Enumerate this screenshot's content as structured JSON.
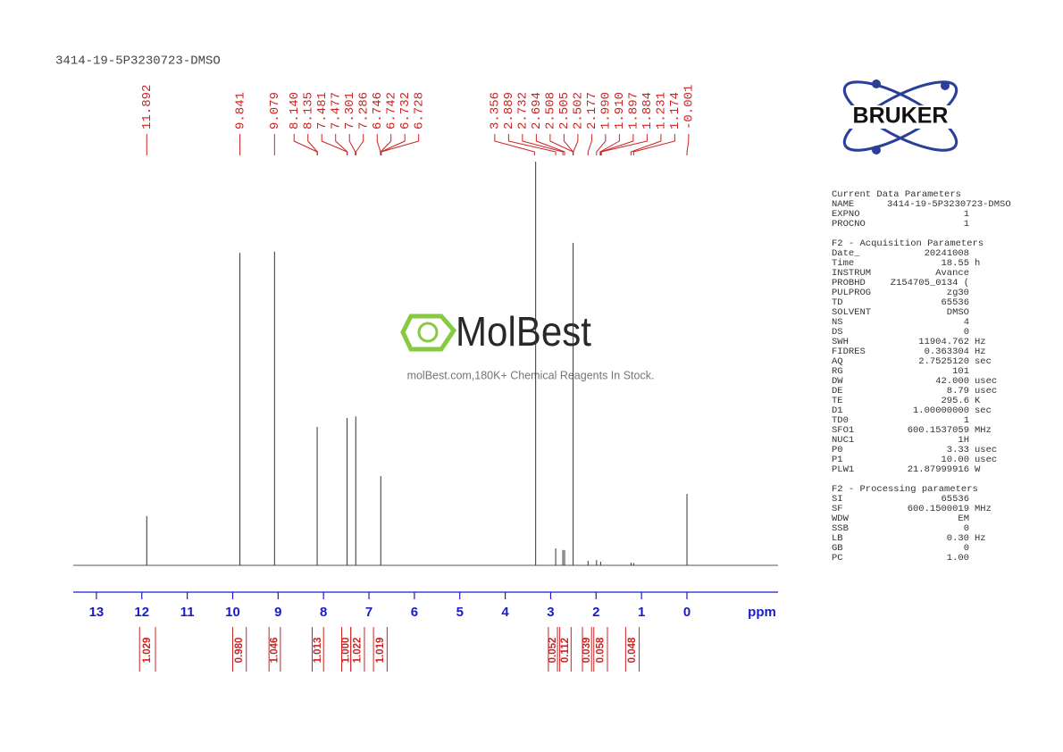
{
  "chart_data": {
    "type": "nmr",
    "title": "3414-19-5P3230723-DMSO",
    "x_label": "ppm",
    "xlim": [
      13.5,
      -2.0
    ],
    "xticks": [
      13,
      12,
      11,
      10,
      9,
      8,
      7,
      6,
      5,
      4,
      3,
      2,
      1,
      0
    ],
    "ylim": [
      0,
      100
    ],
    "axis_color": "#1a1acc",
    "label_color": "#cc2222",
    "spectrum_color": "#333333",
    "peaks": {
      "values": [
        11.892,
        9.841,
        9.079,
        8.14,
        8.135,
        7.481,
        7.477,
        7.301,
        7.286,
        6.746,
        6.742,
        6.732,
        6.728,
        3.356,
        2.889,
        2.732,
        2.694,
        2.508,
        2.505,
        2.502,
        2.177,
        1.99,
        1.91,
        1.897,
        1.884,
        1.231,
        1.174,
        -0.001
      ],
      "value_labels": [
        "11.892",
        "9.841",
        "9.079",
        "8.140",
        "8.135",
        "7.481",
        "7.477",
        "7.301",
        "7.286",
        "6.746",
        "6.742",
        "6.732",
        "6.728",
        "3.356",
        "2.889",
        "2.732",
        "2.694",
        "2.508",
        "2.505",
        "2.502",
        "2.177",
        "1.990",
        "1.910",
        "1.897",
        "1.884",
        "1.231",
        "1.174",
        "-0.001"
      ]
    },
    "signals": {
      "x": [
        11.892,
        9.841,
        9.079,
        8.14,
        7.481,
        7.29,
        6.74,
        3.33,
        2.889,
        2.732,
        2.694,
        2.505,
        2.177,
        1.99,
        1.9,
        1.231,
        1.174,
        -0.001
      ],
      "values": [
        12.2,
        77.4,
        77.7,
        34.3,
        36.5,
        36.9,
        22.1,
        100,
        4.2,
        3.8,
        3.8,
        79.9,
        1.1,
        1.3,
        0.9,
        0.7,
        0.6,
        17.7
      ]
    },
    "integrals": {
      "values": [
        1.029,
        0.98,
        1.046,
        1.013,
        1.0,
        1.022,
        1.019,
        0.052,
        0.112,
        0.039,
        0.058,
        0.048
      ],
      "value_labels": [
        "1.029",
        "0.980",
        "1.046",
        "1.013",
        "1.000",
        "1.022",
        "1.019",
        "0.052",
        "0.112",
        "0.039",
        "0.058",
        "0.048"
      ],
      "ranges": [
        [
          12.05,
          11.7
        ],
        [
          10.0,
          9.7
        ],
        [
          9.2,
          8.95
        ],
        [
          8.25,
          8.0
        ],
        [
          7.6,
          7.4
        ],
        [
          7.4,
          7.1
        ],
        [
          6.9,
          6.6
        ],
        [
          3.05,
          2.85
        ],
        [
          2.8,
          2.55
        ],
        [
          2.3,
          2.1
        ],
        [
          2.05,
          1.75
        ],
        [
          1.35,
          1.05
        ]
      ]
    }
  },
  "branding": {
    "logo": "BRUKER",
    "watermark": "MolBest",
    "watermark_caption": "molBest.com,180K+ Chemical Reagents In Stock."
  },
  "parameters": [
    {
      "title": "Current Data Parameters",
      "rows": [
        [
          "NAME",
          "3414-19-5P3230723-DMSO"
        ],
        [
          "EXPNO",
          "1"
        ],
        [
          "PROCNO",
          "1"
        ]
      ]
    },
    {
      "title": "F2 - Acquisition Parameters",
      "rows": [
        [
          "Date_",
          "20241008"
        ],
        [
          "Time",
          "18.55",
          "h"
        ],
        [
          "INSTRUM",
          "Avance"
        ],
        [
          "PROBHD",
          "Z154705_0134 ("
        ],
        [
          "PULPROG",
          "zg30"
        ],
        [
          "TD",
          "65536"
        ],
        [
          "SOLVENT",
          "DMSO"
        ],
        [
          "NS",
          "4"
        ],
        [
          "DS",
          "0"
        ],
        [
          "SWH",
          "11904.762",
          "Hz"
        ],
        [
          "FIDRES",
          "0.363304",
          "Hz"
        ],
        [
          "AQ",
          "2.7525120",
          "sec"
        ],
        [
          "RG",
          "101"
        ],
        [
          "DW",
          "42.000",
          "usec"
        ],
        [
          "DE",
          "8.79",
          "usec"
        ],
        [
          "TE",
          "295.6",
          "K"
        ],
        [
          "D1",
          "1.00000000",
          "sec"
        ],
        [
          "TD0",
          "1"
        ],
        [
          "SFO1",
          "600.1537059",
          "MHz"
        ],
        [
          "NUC1",
          "1H"
        ],
        [
          "P0",
          "3.33",
          "usec"
        ],
        [
          "P1",
          "10.00",
          "usec"
        ],
        [
          "PLW1",
          "21.87999916",
          "W"
        ]
      ]
    },
    {
      "title": "F2 - Processing parameters",
      "rows": [
        [
          "SI",
          "65536"
        ],
        [
          "SF",
          "600.1500019",
          "MHz"
        ],
        [
          "WDW",
          "EM"
        ],
        [
          "SSB",
          "0"
        ],
        [
          "LB",
          "0.30",
          "Hz"
        ],
        [
          "GB",
          "0"
        ],
        [
          "PC",
          "1.00"
        ]
      ]
    }
  ]
}
